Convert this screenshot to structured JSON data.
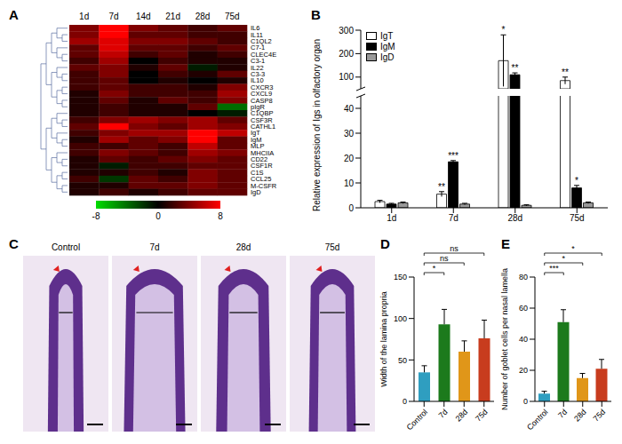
{
  "chart_data": [
    {
      "panel": "A",
      "type": "heatmap",
      "categories": [
        "1d",
        "7d",
        "14d",
        "21d",
        "28d",
        "75d"
      ],
      "rows": [
        "IL6",
        "IL11",
        "C1QL2",
        "C7-1",
        "CLEC4E",
        "C3-1",
        "IL22",
        "C3-3",
        "IL10",
        "CXCR3",
        "CXCL9",
        "CASP8",
        "pIgR",
        "C1QBP",
        "CSF3R",
        "CATHL1",
        "IgT",
        "IgM",
        "MLP",
        "MHCIIA",
        "CD22",
        "CSF1R",
        "C1S",
        "CCL25",
        "M-CSFR",
        "IgD"
      ],
      "values": [
        [
          4,
          8,
          4,
          3,
          2,
          3
        ],
        [
          4,
          8,
          3,
          3,
          2,
          2
        ],
        [
          5,
          7,
          4,
          4,
          3,
          2
        ],
        [
          3,
          7,
          3,
          3,
          2,
          3
        ],
        [
          3,
          6,
          2,
          3,
          1,
          2
        ],
        [
          2,
          5,
          0,
          2,
          1,
          1
        ],
        [
          3,
          4,
          1,
          3,
          -1,
          1
        ],
        [
          2,
          4,
          0,
          2,
          1,
          3
        ],
        [
          2,
          3,
          0,
          1,
          0,
          1
        ],
        [
          2,
          3,
          2,
          2,
          1,
          4
        ],
        [
          1,
          4,
          2,
          2,
          2,
          5
        ],
        [
          1,
          3,
          1,
          3,
          2,
          4
        ],
        [
          1,
          2,
          1,
          1,
          3,
          -4
        ],
        [
          1,
          2,
          1,
          1,
          0,
          -1
        ],
        [
          2,
          4,
          5,
          4,
          5,
          3
        ],
        [
          3,
          8,
          4,
          3,
          5,
          4
        ],
        [
          2,
          4,
          5,
          5,
          8,
          6
        ],
        [
          1,
          5,
          3,
          4,
          8,
          3
        ],
        [
          2,
          2,
          3,
          2,
          6,
          3
        ],
        [
          2,
          4,
          3,
          2,
          5,
          4
        ],
        [
          1,
          3,
          2,
          3,
          4,
          3
        ],
        [
          1,
          -1,
          2,
          2,
          3,
          3
        ],
        [
          1,
          1,
          2,
          1,
          4,
          3
        ],
        [
          2,
          -2,
          3,
          2,
          4,
          3
        ],
        [
          1,
          1,
          3,
          3,
          4,
          3
        ],
        [
          1,
          2,
          1,
          2,
          3,
          3
        ]
      ],
      "color_range": [
        -8,
        8
      ],
      "color_ticks": [
        -8,
        0,
        8
      ]
    },
    {
      "panel": "B",
      "type": "bar",
      "categories": [
        "1d",
        "7d",
        "28d",
        "75d"
      ],
      "ylabel": "Relative expression of Igs in olfactory organ",
      "ylim": [
        0,
        300
      ],
      "yticks": [
        0,
        10,
        20,
        30,
        40,
        100,
        200,
        300
      ],
      "axis_break": [
        45,
        50
      ],
      "legend": "top-left",
      "series": [
        {
          "name": "IgT",
          "color": "#ffffff",
          "values": [
            2.5,
            5.5,
            170,
            85
          ],
          "errors": [
            0.5,
            1,
            110,
            15
          ],
          "significance": [
            null,
            "**",
            "*",
            "**"
          ]
        },
        {
          "name": "IgM",
          "color": "#000000",
          "values": [
            1.5,
            18.5,
            110,
            8
          ],
          "errors": [
            0.3,
            0.5,
            8,
            1
          ],
          "significance": [
            null,
            "***",
            "**",
            "*"
          ]
        },
        {
          "name": "IgD",
          "color": "#999999",
          "values": [
            2,
            1.5,
            1,
            2
          ],
          "errors": [
            0.3,
            0.3,
            0.2,
            0.3
          ],
          "significance": [
            null,
            null,
            null,
            null
          ]
        }
      ]
    },
    {
      "panel": "C",
      "type": "image",
      "labels": [
        "Control",
        "7d",
        "28d",
        "75d"
      ]
    },
    {
      "panel": "D",
      "type": "bar",
      "categories": [
        "Control",
        "7d",
        "28d",
        "75d"
      ],
      "values": [
        35,
        93,
        60,
        76
      ],
      "errors": [
        8,
        18,
        13,
        22
      ],
      "colors": [
        "#2f9ec0",
        "#1c7a1c",
        "#e09619",
        "#c83c1e"
      ],
      "ylabel": "Width of the lamina propria",
      "ylim": [
        0,
        150
      ],
      "yticks": [
        0,
        50,
        100,
        150
      ],
      "comparisons": [
        {
          "from": "Control",
          "to": "7d",
          "label": "*"
        },
        {
          "from": "Control",
          "to": "28d",
          "label": "ns"
        },
        {
          "from": "Control",
          "to": "75d",
          "label": "ns"
        }
      ]
    },
    {
      "panel": "E",
      "type": "bar",
      "categories": [
        "Control",
        "7d",
        "28d",
        "75d"
      ],
      "values": [
        5,
        51,
        15,
        21
      ],
      "errors": [
        1.5,
        8,
        3,
        6
      ],
      "colors": [
        "#2f9ec0",
        "#1c7a1c",
        "#e09619",
        "#c83c1e"
      ],
      "ylabel": "Number of goblet cells per nasal lamella",
      "ylim": [
        0,
        80
      ],
      "yticks": [
        0,
        20,
        40,
        60,
        80
      ],
      "comparisons": [
        {
          "from": "Control",
          "to": "7d",
          "label": "***"
        },
        {
          "from": "Control",
          "to": "28d",
          "label": "*"
        },
        {
          "from": "Control",
          "to": "75d",
          "label": "*"
        }
      ]
    }
  ]
}
